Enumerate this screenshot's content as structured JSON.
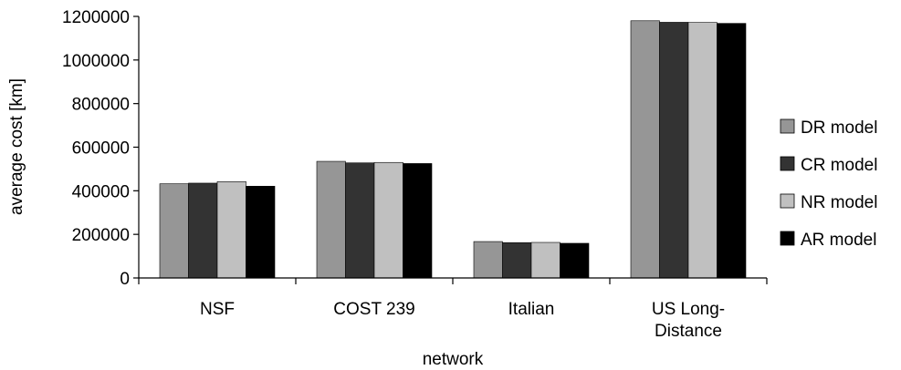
{
  "chart_data": {
    "type": "bar",
    "title": "",
    "xlabel": "network",
    "ylabel": "average cost [km]",
    "ylim": [
      0,
      1200000
    ],
    "y_ticks": [
      0,
      200000,
      400000,
      600000,
      800000,
      1000000,
      1200000
    ],
    "y_tick_labels": [
      "0",
      "200000",
      "400000",
      "600000",
      "800000",
      "1000000",
      "1200000"
    ],
    "grid": false,
    "legend_position": "right",
    "categories": [
      "NSF",
      "COST 239",
      "Italian",
      "US Long-Distance"
    ],
    "category_label_lines": [
      [
        "NSF"
      ],
      [
        "COST 239"
      ],
      [
        "Italian"
      ],
      [
        "US Long-",
        "Distance"
      ]
    ],
    "series": [
      {
        "name": "DR model",
        "color": "#969696",
        "values": [
          432000,
          535000,
          167000,
          1180000
        ]
      },
      {
        "name": "CR model",
        "color": "#333333",
        "values": [
          435000,
          528000,
          162000,
          1173000
        ]
      },
      {
        "name": "NR model",
        "color": "#c0c0c0",
        "values": [
          442000,
          530000,
          163000,
          1172000
        ]
      },
      {
        "name": "AR model",
        "color": "#000000",
        "values": [
          421000,
          525000,
          159000,
          1168000
        ]
      }
    ]
  }
}
